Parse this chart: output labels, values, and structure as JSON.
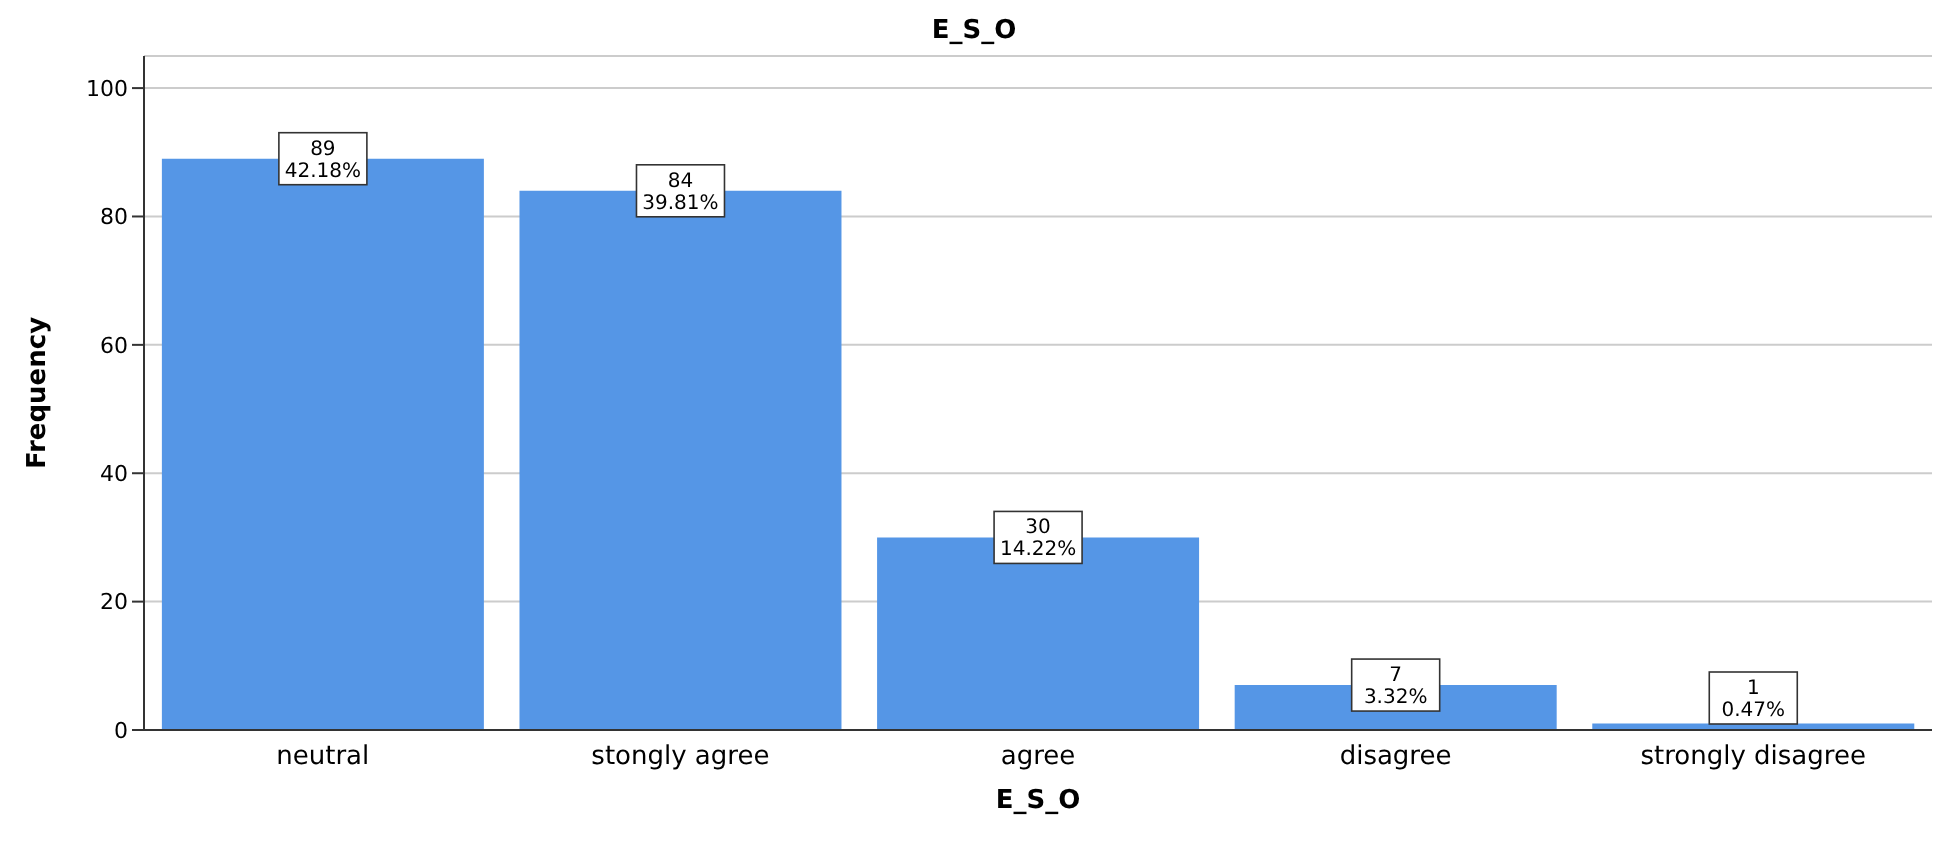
{
  "chart_data": {
    "type": "bar",
    "title": "E_S_O",
    "xlabel": "E_S_O",
    "ylabel": "Frequency",
    "categories": [
      "neutral",
      "stongly agree",
      "agree",
      "disagree",
      "strongly disagree"
    ],
    "values": [
      89,
      84,
      30,
      7,
      1
    ],
    "color": "#5596e6",
    "value_labels": [
      "89\n42.18%",
      "84\n39.81%",
      "30\n14.22%",
      "7\n3.32%",
      "1\n0.47%"
    ],
    "ylim": [
      0,
      105
    ],
    "yticks": [
      0,
      20,
      40,
      60,
      80,
      100
    ],
    "grid": "y"
  }
}
